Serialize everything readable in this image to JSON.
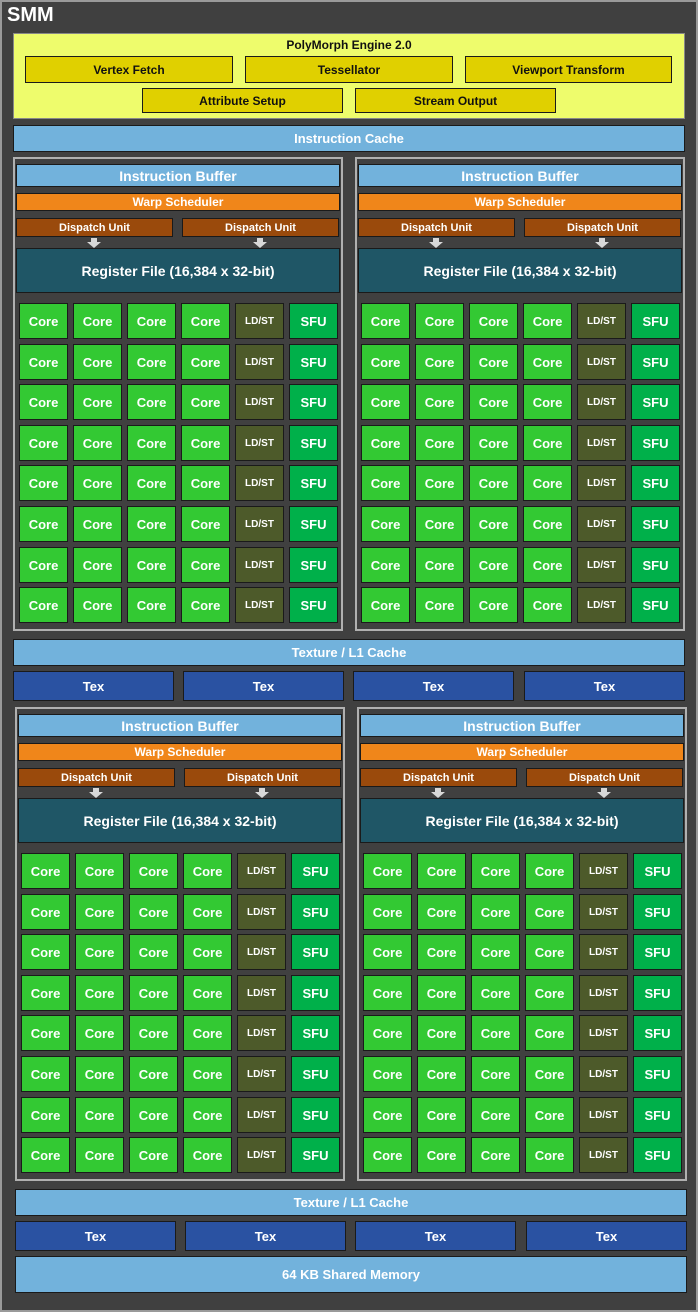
{
  "title": "SMM",
  "polymorph": {
    "title": "PolyMorph Engine 2.0",
    "units": [
      "Vertex Fetch",
      "Tessellator",
      "Viewport Transform",
      "Attribute Setup",
      "Stream Output"
    ]
  },
  "instruction_cache": "Instruction Cache",
  "quadrant": {
    "instruction_buffer": "Instruction Buffer",
    "warp_scheduler": "Warp Scheduler",
    "dispatch_units": [
      "Dispatch Unit",
      "Dispatch Unit"
    ],
    "register_file": "Register File (16,384 x 32-bit)",
    "row_units": [
      "Core",
      "Core",
      "Core",
      "Core",
      "LD/ST",
      "SFU"
    ],
    "rows": 8
  },
  "texture_l1": [
    "Texture / L1 Cache",
    "Texture / L1 Cache"
  ],
  "tex_units": [
    "Tex",
    "Tex",
    "Tex",
    "Tex"
  ],
  "shared_memory": "64 KB Shared Memory",
  "colors": {
    "background": "#404040",
    "polymorph": "#eefc6c",
    "polymorph_unit": "#e0d000",
    "cache": "#72b2dc",
    "tex": "#2a52a2",
    "warp_scheduler": "#f0861a",
    "dispatch": "#9a4a0c",
    "register_file": "#1f5666",
    "core": "#33c933",
    "ldst": "#4d5a2a",
    "sfu": "#00b04a"
  }
}
